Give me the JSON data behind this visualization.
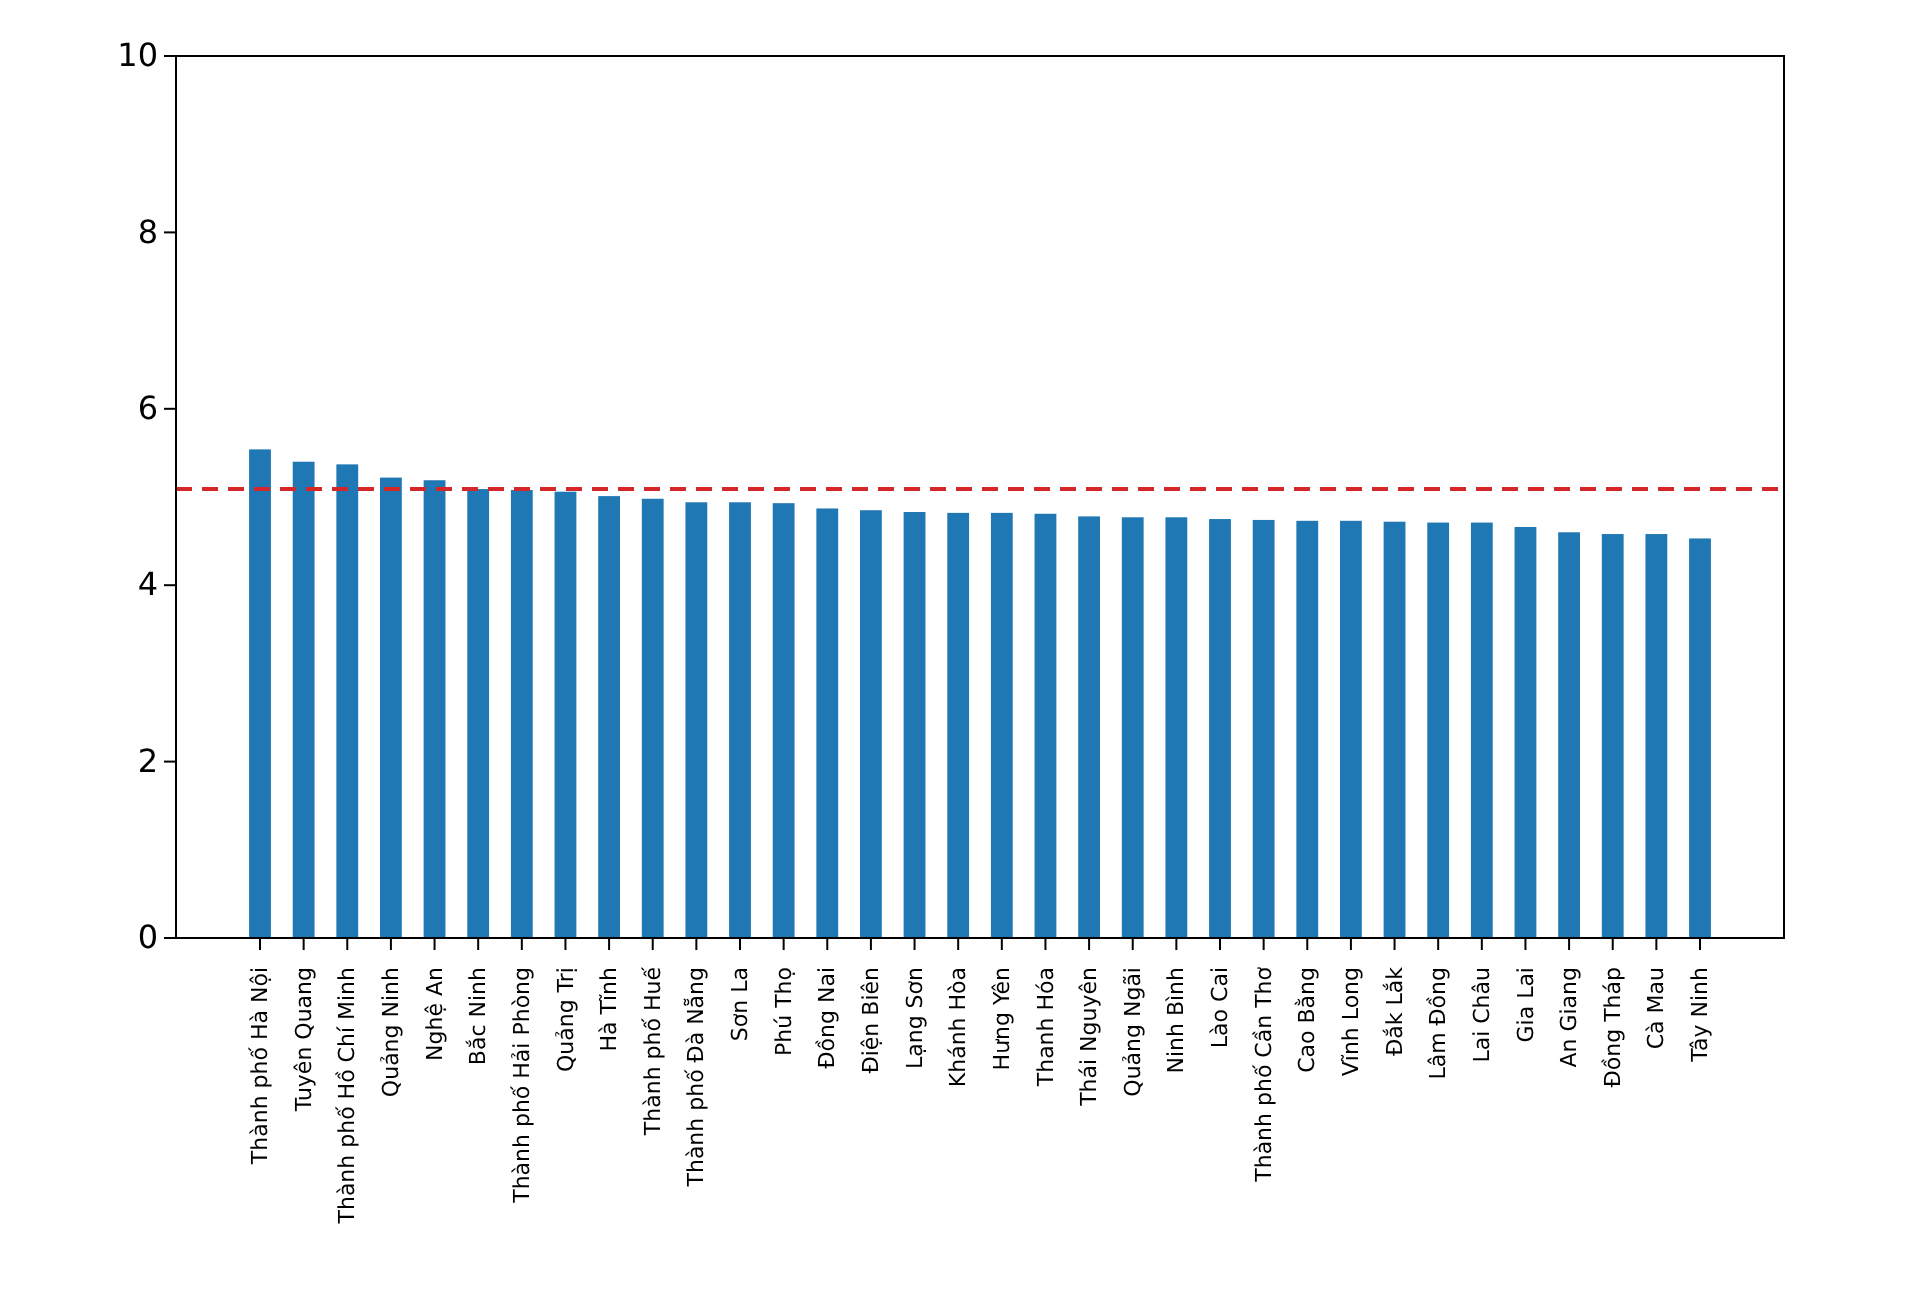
{
  "chart_data": {
    "type": "bar",
    "categories": [
      "Thành phố Hà Nội",
      "Tuyên Quang",
      "Thành phố Hồ Chí Minh",
      "Quảng Ninh",
      "Nghệ An",
      "Bắc Ninh",
      "Thành phố Hải Phòng",
      "Quảng Trị",
      "Hà Tĩnh",
      "Thành phố Huế",
      "Thành phố Đà Nẵng",
      "Sơn La",
      "Phú Thọ",
      "Đồng Nai",
      "Điện Biên",
      "Lạng Sơn",
      "Khánh Hòa",
      "Hưng Yên",
      "Thanh Hóa",
      "Thái Nguyên",
      "Quảng Ngãi",
      "Ninh Bình",
      "Lào Cai",
      "Thành phố Cần Thơ",
      "Cao Bằng",
      "Vĩnh Long",
      "Đắk Lắk",
      "Lâm Đồng",
      "Lai Châu",
      "Gia Lai",
      "An Giang",
      "Đồng Tháp",
      "Cà Mau",
      "Tây Ninh"
    ],
    "values": [
      5.54,
      5.4,
      5.37,
      5.22,
      5.19,
      5.09,
      5.08,
      5.06,
      5.01,
      4.98,
      4.94,
      4.94,
      4.93,
      4.87,
      4.85,
      4.83,
      4.82,
      4.82,
      4.81,
      4.78,
      4.77,
      4.77,
      4.75,
      4.74,
      4.73,
      4.73,
      4.72,
      4.71,
      4.71,
      4.66,
      4.6,
      4.58,
      4.58,
      4.53
    ],
    "color": "#1f77b4",
    "ylim": [
      0,
      10
    ],
    "yticks": [
      0,
      2,
      4,
      6,
      8,
      10
    ],
    "ref_lines": [
      {
        "axis": "y",
        "value": 5.09,
        "color": "#d62728",
        "line_style": "dashed"
      }
    ]
  }
}
